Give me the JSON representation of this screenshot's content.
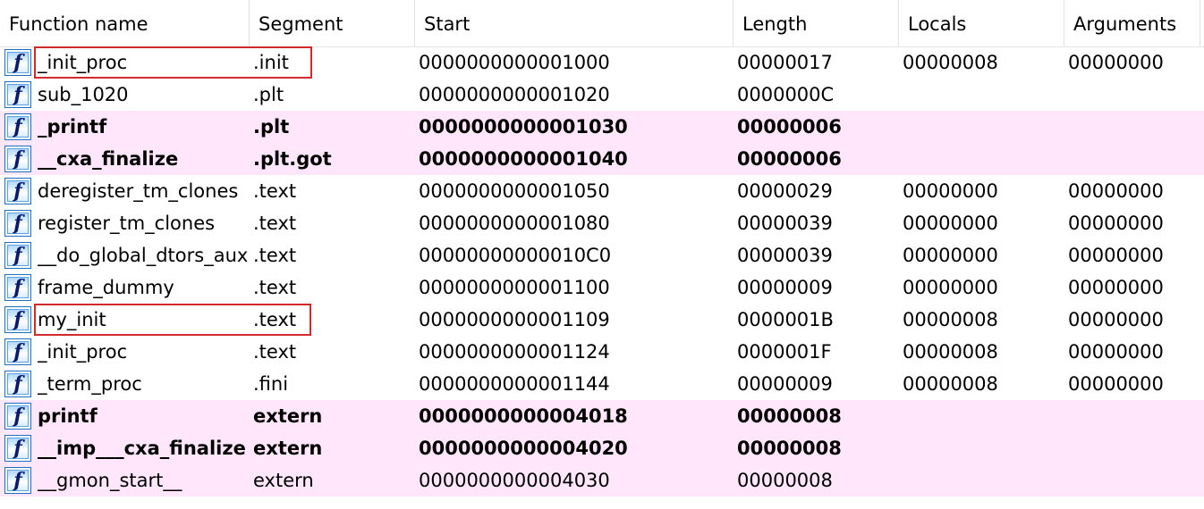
{
  "columns": {
    "name": "Function name",
    "segment": "Segment",
    "start": "Start",
    "length": "Length",
    "locals": "Locals",
    "arguments": "Arguments"
  },
  "icon": {
    "name": "function-icon",
    "glyph": "f"
  },
  "colors": {
    "library_row_bg": "#ffe6fb",
    "highlight_border": "#d22a2a"
  },
  "rows": [
    {
      "name": "_init_proc",
      "segment": ".init",
      "start": "0000000000001000",
      "length": "00000017",
      "locals": "00000008",
      "arguments": "00000000",
      "library": false,
      "highlighted": true
    },
    {
      "name": "sub_1020",
      "segment": ".plt",
      "start": "0000000000001020",
      "length": "0000000C",
      "locals": "",
      "arguments": "",
      "library": false,
      "highlighted": false
    },
    {
      "name": "_printf",
      "segment": ".plt",
      "start": "0000000000001030",
      "length": "00000006",
      "locals": "",
      "arguments": "",
      "library": true,
      "highlighted": false
    },
    {
      "name": "__cxa_finalize",
      "segment": ".plt.got",
      "start": "0000000000001040",
      "length": "00000006",
      "locals": "",
      "arguments": "",
      "library": true,
      "highlighted": false
    },
    {
      "name": "deregister_tm_clones",
      "segment": ".text",
      "start": "0000000000001050",
      "length": "00000029",
      "locals": "00000000",
      "arguments": "00000000",
      "library": false,
      "highlighted": false
    },
    {
      "name": "register_tm_clones",
      "segment": ".text",
      "start": "0000000000001080",
      "length": "00000039",
      "locals": "00000000",
      "arguments": "00000000",
      "library": false,
      "highlighted": false
    },
    {
      "name": "__do_global_dtors_aux",
      "segment": ".text",
      "start": "00000000000010C0",
      "length": "00000039",
      "locals": "00000000",
      "arguments": "00000000",
      "library": false,
      "highlighted": false
    },
    {
      "name": "frame_dummy",
      "segment": ".text",
      "start": "0000000000001100",
      "length": "00000009",
      "locals": "00000000",
      "arguments": "00000000",
      "library": false,
      "highlighted": false
    },
    {
      "name": "my_init",
      "segment": ".text",
      "start": "0000000000001109",
      "length": "0000001B",
      "locals": "00000008",
      "arguments": "00000000",
      "library": false,
      "highlighted": true
    },
    {
      "name": "_init_proc",
      "segment": ".text",
      "start": "0000000000001124",
      "length": "0000001F",
      "locals": "00000008",
      "arguments": "00000000",
      "library": false,
      "highlighted": false
    },
    {
      "name": "_term_proc",
      "segment": ".fini",
      "start": "0000000000001144",
      "length": "00000009",
      "locals": "00000008",
      "arguments": "00000000",
      "library": false,
      "highlighted": false
    },
    {
      "name": "printf",
      "segment": "extern",
      "start": "0000000000004018",
      "length": "00000008",
      "locals": "",
      "arguments": "",
      "library": true,
      "highlighted": false
    },
    {
      "name": "__imp___cxa_finalize",
      "segment": "extern",
      "start": "0000000000004020",
      "length": "00000008",
      "locals": "",
      "arguments": "",
      "library": true,
      "highlighted": false
    },
    {
      "name": "__gmon_start__",
      "segment": "extern",
      "start": "0000000000004030",
      "length": "00000008",
      "locals": "",
      "arguments": "",
      "library": "pink-only",
      "highlighted": false
    }
  ]
}
